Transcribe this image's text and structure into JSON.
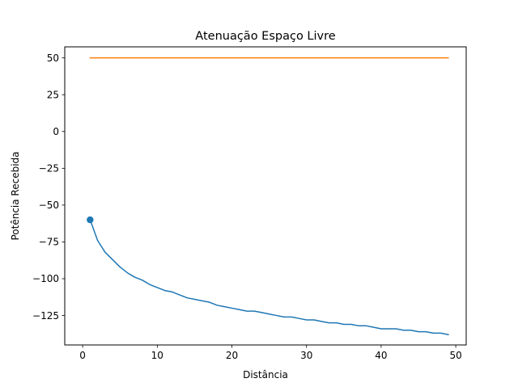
{
  "chart_data": {
    "type": "line",
    "title": "Atenuação Espaço Livre",
    "xlabel": "Distância",
    "ylabel": "Potência Recebida",
    "xlim": [
      -2.4,
      51.4
    ],
    "ylim": [
      -145,
      57.5
    ],
    "xticks": [
      "0",
      "10",
      "20",
      "30",
      "40",
      "50"
    ],
    "yticks": [
      "50",
      "25",
      "0",
      "−25",
      "−50",
      "−75",
      "−100",
      "−125"
    ],
    "grid": false,
    "legend": "none",
    "series": [
      {
        "color": "#1f77b4",
        "marker_at_first_point": true,
        "x": [
          1,
          2,
          3,
          4,
          5,
          6,
          7,
          8,
          9,
          10,
          11,
          12,
          13,
          14,
          15,
          16,
          17,
          18,
          19,
          20,
          21,
          22,
          23,
          24,
          25,
          26,
          27,
          28,
          29,
          30,
          31,
          32,
          33,
          34,
          35,
          36,
          37,
          38,
          39,
          40,
          41,
          42,
          43,
          44,
          45,
          46,
          47,
          48,
          49
        ],
        "y": [
          -60,
          -74,
          -82,
          -87,
          -92,
          -96,
          -99,
          -101,
          -104,
          -106,
          -108,
          -109,
          -111,
          -113,
          -114,
          -115,
          -116,
          -118,
          -119,
          -120,
          -121,
          -122,
          -122,
          -123,
          -124,
          -125,
          -126,
          -126,
          -127,
          -128,
          -128,
          -129,
          -130,
          -130,
          -131,
          -131,
          -132,
          -132,
          -133,
          -134,
          -134,
          -134,
          -135,
          -135,
          -136,
          -136,
          -137,
          -137,
          -138
        ]
      },
      {
        "color": "#ff7f0e",
        "x": [
          1,
          49
        ],
        "y": [
          50,
          50
        ]
      }
    ]
  }
}
